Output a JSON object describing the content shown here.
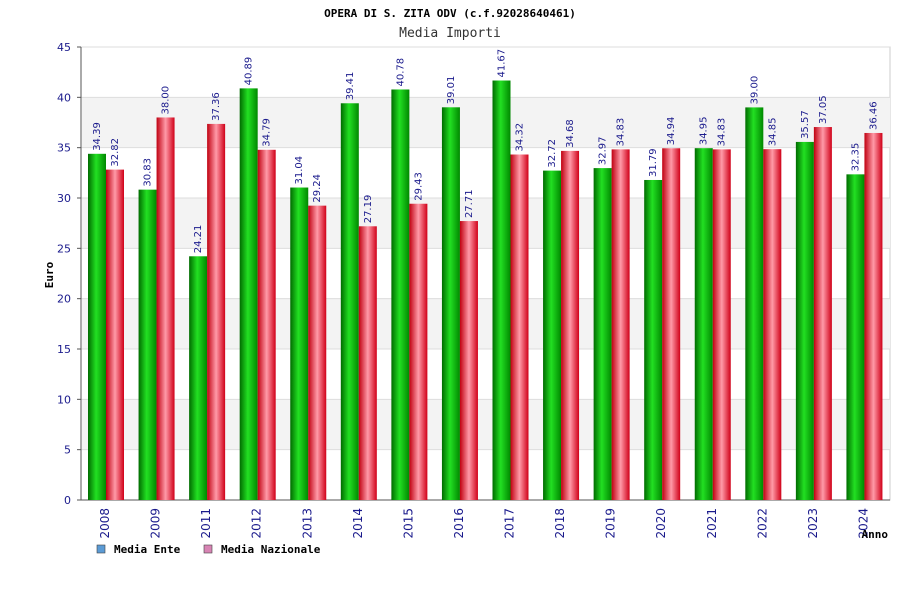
{
  "chart_data": {
    "type": "bar",
    "title": "OPERA DI S. ZITA ODV (c.f.92028640461)",
    "subtitle": "Media Importi",
    "ylabel": "Euro",
    "xlabel": "Anno",
    "ylim": [
      0,
      45
    ],
    "ytick_step": 5,
    "grid": "horizontal",
    "legend_position": "bottom-left",
    "categories": [
      "2008",
      "2009",
      "2011",
      "2012",
      "2013",
      "2014",
      "2015",
      "2016",
      "2017",
      "2018",
      "2019",
      "2020",
      "2021",
      "2022",
      "2023",
      "2024"
    ],
    "series": [
      {
        "name": "Media Ente",
        "color": "#00c000",
        "legend_color": "#5b9bd5",
        "values": [
          34.39,
          30.83,
          24.21,
          40.89,
          31.04,
          39.41,
          40.78,
          39.01,
          41.67,
          32.72,
          32.97,
          31.79,
          34.95,
          39.0,
          35.57,
          32.35
        ],
        "labels": [
          "34.39",
          "30.83",
          "24.21",
          "40.89",
          "31.04",
          "39.41",
          "40.78",
          "39.01",
          "41.67",
          "32.72",
          "32.97",
          "31.79",
          "34.95",
          "39.00",
          "35.57",
          "32.35"
        ]
      },
      {
        "name": "Media Nazionale",
        "color": "#e8001c",
        "legend_color": "#d884b4",
        "values": [
          32.82,
          38.0,
          37.36,
          34.79,
          29.24,
          27.19,
          29.43,
          27.71,
          34.32,
          34.68,
          34.83,
          34.94,
          34.83,
          34.85,
          37.05,
          36.46
        ],
        "labels": [
          "32.82",
          "38.00",
          "37.36",
          "34.79",
          "29.24",
          "27.19",
          "29.43",
          "27.71",
          "34.32",
          "34.68",
          "34.83",
          "34.94",
          "34.83",
          "34.85",
          "37.05",
          "36.46"
        ]
      }
    ]
  }
}
